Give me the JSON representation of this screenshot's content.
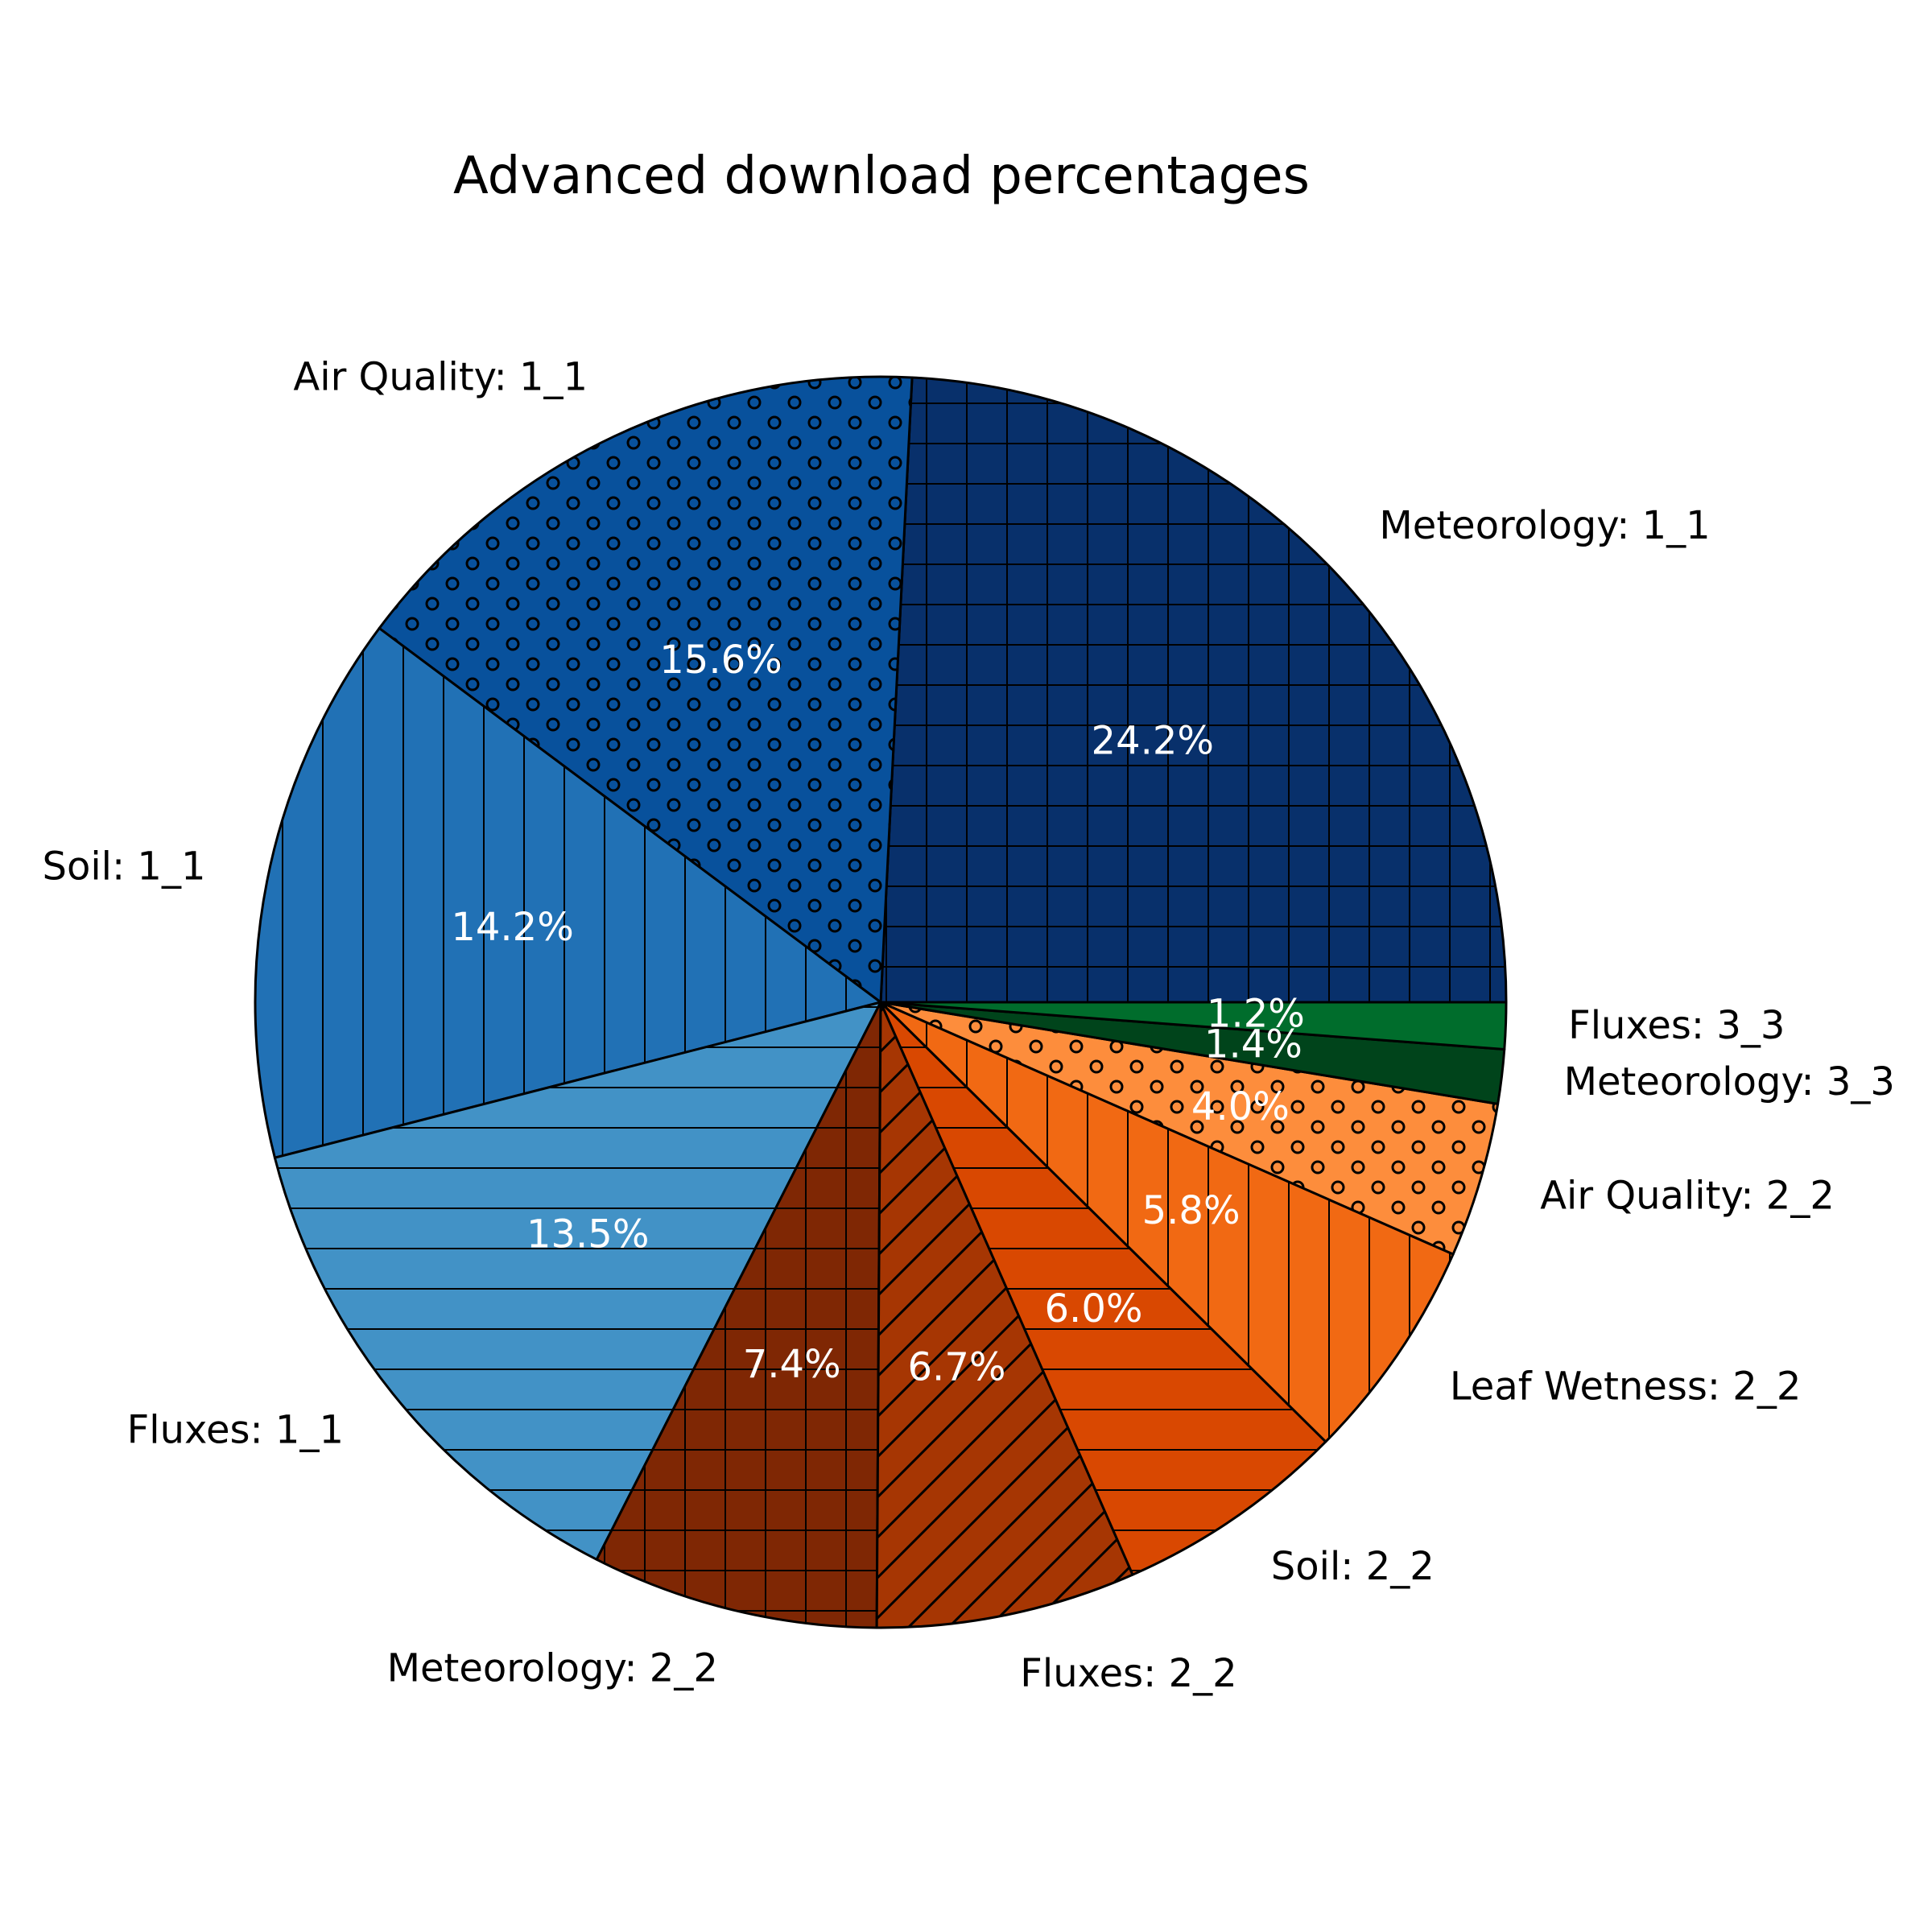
{
  "chart_data": {
    "type": "pie",
    "title": "Advanced download percentages",
    "start_angle_deg": 0,
    "direction": "counterclockwise",
    "slices": [
      {
        "label": "Meteorology: 1_1",
        "value": 24.2,
        "pct_text": "24.2%",
        "color": "#08306b",
        "pattern": "grid"
      },
      {
        "label": "Air Quality: 1_1",
        "value": 15.6,
        "pct_text": "15.6%",
        "color": "#08519c",
        "pattern": "circles"
      },
      {
        "label": "Soil: 1_1",
        "value": 14.2,
        "pct_text": "14.2%",
        "color": "#2171b5",
        "pattern": "vertical"
      },
      {
        "label": "Fluxes: 1_1",
        "value": 13.5,
        "pct_text": "13.5%",
        "color": "#4292c6",
        "pattern": "horizontal"
      },
      {
        "label": "Meteorology: 2_2",
        "value": 7.4,
        "pct_text": "7.4%",
        "color": "#7f2704",
        "pattern": "grid"
      },
      {
        "label": "Fluxes: 2_2",
        "value": 6.7,
        "pct_text": "6.7%",
        "color": "#a63603",
        "pattern": "diagonal"
      },
      {
        "label": "Soil: 2_2",
        "value": 6.0,
        "pct_text": "6.0%",
        "color": "#d94801",
        "pattern": "horizontal"
      },
      {
        "label": "Leaf Wetness: 2_2",
        "value": 5.8,
        "pct_text": "5.8%",
        "color": "#f16913",
        "pattern": "vertical"
      },
      {
        "label": "Air Quality: 2_2",
        "value": 4.0,
        "pct_text": "4.0%",
        "color": "#fd8d3c",
        "pattern": "circles"
      },
      {
        "label": "Meteorology: 3_3",
        "value": 1.4,
        "pct_text": "1.4%",
        "color": "#00441b",
        "pattern": "none"
      },
      {
        "label": "Fluxes: 3_3",
        "value": 1.2,
        "pct_text": "1.2%",
        "color": "#006d2c",
        "pattern": "none"
      }
    ]
  }
}
